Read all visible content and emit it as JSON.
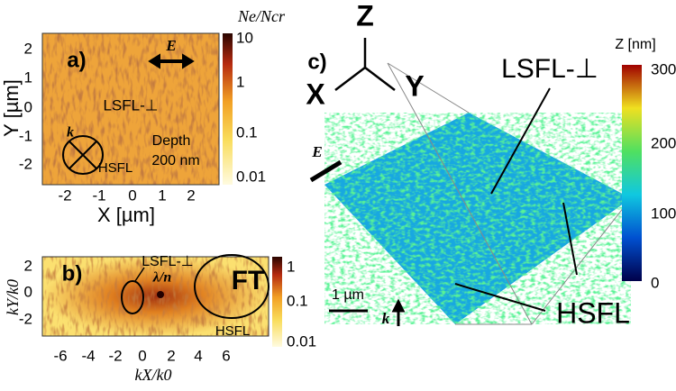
{
  "panel_a": {
    "label": "a)",
    "x_label": "X [µm]",
    "y_label": "Y [µm]",
    "x_ticks": [
      "-2",
      "-1",
      "0",
      "1",
      "2"
    ],
    "y_ticks": [
      "2",
      "1",
      "0",
      "-1",
      "-2"
    ],
    "colorbar_title": "Ne/Ncr",
    "colorbar_ticks": [
      "10",
      "1",
      "0.1",
      "0.01"
    ],
    "field_label": "E",
    "wave_label": "k",
    "lsfl_label": "LSFL-⊥",
    "hsfl_label": "HSFL",
    "depth_label": "Depth",
    "depth_value": "200 nm"
  },
  "panel_b": {
    "label": "b)",
    "x_label": "kX/k0",
    "y_label": "kY/k0",
    "x_ticks": [
      "-6",
      "-4",
      "-2",
      "0",
      "2",
      "4",
      "6"
    ],
    "y_ticks": [
      "2",
      "0",
      "-2"
    ],
    "colorbar_ticks": [
      "1",
      "0.1",
      "0.01"
    ],
    "lsfl_label": "LSFL-⊥",
    "ratio_label": "λ/n",
    "ft_label": "FT",
    "hsfl_label": "HSFL"
  },
  "panel_c": {
    "label": "c)",
    "axis_z": "Z",
    "axis_x": "X",
    "axis_y": "Y",
    "colorbar_title": "Z [nm]",
    "colorbar_ticks": [
      "300",
      "200",
      "100",
      "0"
    ],
    "lsfl_label": "LSFL-⊥",
    "hsfl_label": "HSFL",
    "scale_label": "1 µm",
    "field_label": "E",
    "wave_label": "k"
  }
}
